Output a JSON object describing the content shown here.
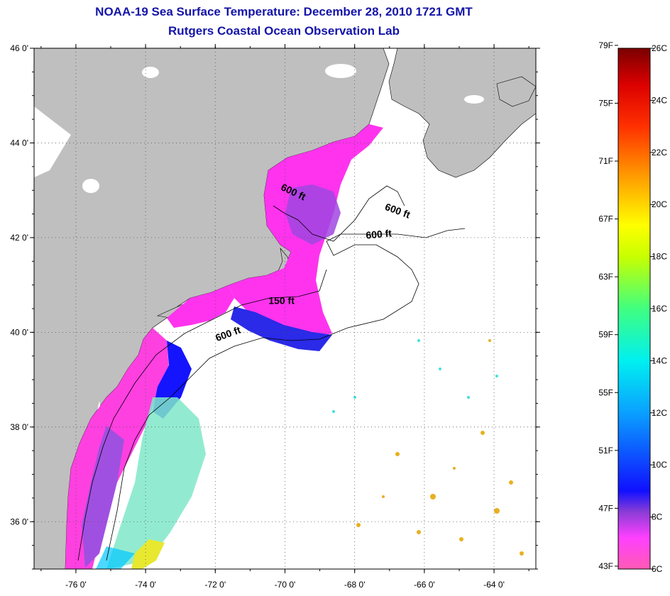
{
  "title": "NOAA-19 Sea Surface Temperature:  December 28, 2010 1721 GMT",
  "subtitle": "Rutgers Coastal Ocean Observation Lab",
  "map": {
    "lat_ticks": [
      "46 0'",
      "44 0'",
      "42 0'",
      "40 0'",
      "38 0'",
      "36 0'"
    ],
    "lon_ticks": [
      "-76 0'",
      "-74 0'",
      "-72 0'",
      "-70 0'",
      "-68 0'",
      "-66 0'",
      "-64 0'"
    ],
    "lat_range": [
      35,
      46
    ],
    "lon_range": [
      -77.2,
      -62.8
    ],
    "contours": [
      {
        "text": "600 ft",
        "lon": -69.8,
        "lat": 42.9
      },
      {
        "text": "600 ft",
        "lon": -66.8,
        "lat": 42.5
      },
      {
        "text": "600 ft",
        "lon": -67.3,
        "lat": 42.0
      },
      {
        "text": "150 ft",
        "lon": -70.1,
        "lat": 40.6
      },
      {
        "text": "600 ft",
        "lon": -71.6,
        "lat": 39.9
      }
    ],
    "colors": {
      "land": "#bfbfbf",
      "ocean_nodata": "#ffffff",
      "contour": "#000000"
    }
  },
  "colorbar": {
    "fahrenheit": [
      "79F",
      "75F",
      "71F",
      "67F",
      "63F",
      "59F",
      "55F",
      "51F",
      "47F",
      "43F"
    ],
    "celsius": [
      "26C",
      "24C",
      "22C",
      "20C",
      "18C",
      "16C",
      "14C",
      "12C",
      "10C",
      "8C",
      "6C"
    ],
    "range_c": [
      6,
      26
    ]
  }
}
